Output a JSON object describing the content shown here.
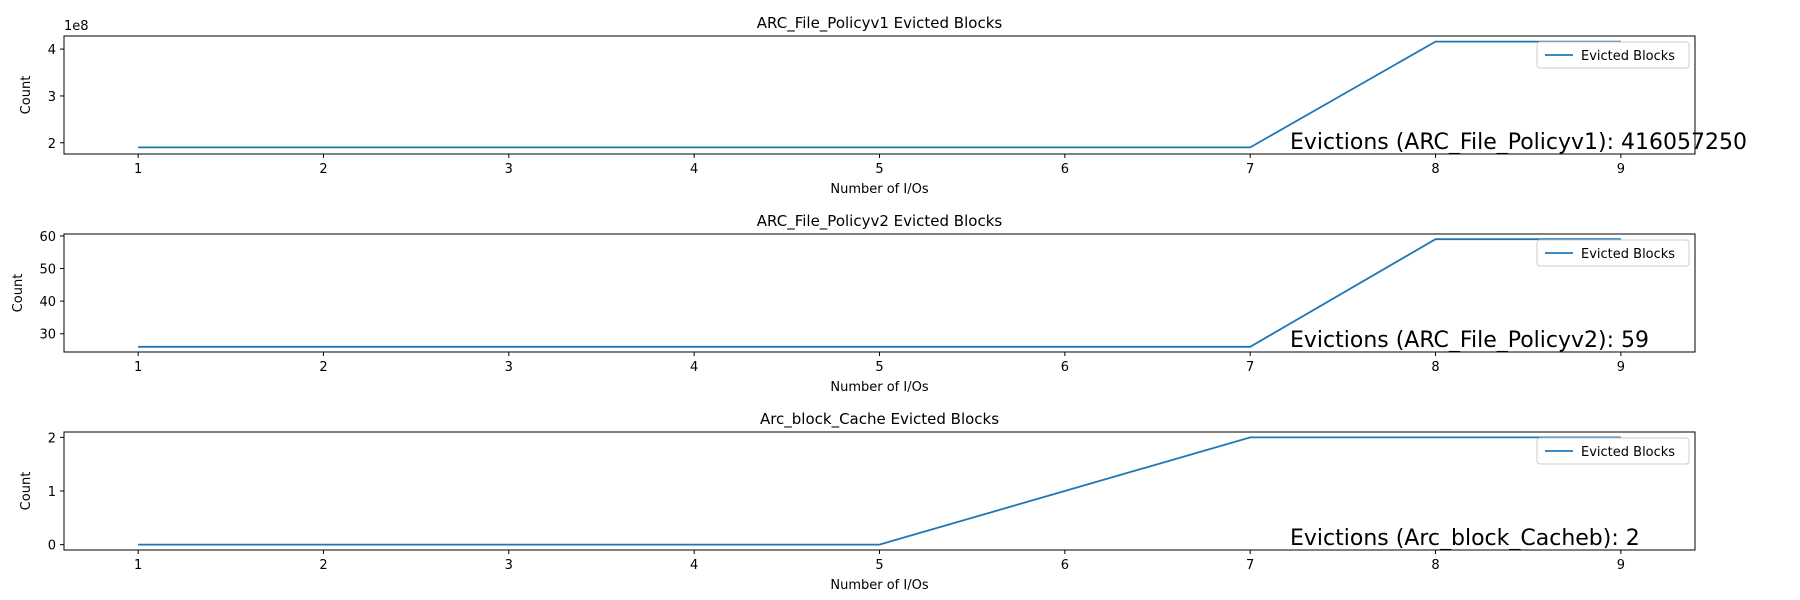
{
  "chart_data": [
    {
      "type": "line",
      "title": "ARC_File_Policyv1 Evicted Blocks",
      "xlabel": "Number of I/Os",
      "ylabel": "Count",
      "offset_label": "1e8",
      "x": [
        1,
        2,
        3,
        4,
        5,
        6,
        7,
        8,
        9
      ],
      "xticks": [
        "1",
        "2",
        "3",
        "4",
        "5",
        "6",
        "7",
        "8",
        "9"
      ],
      "xlim": [
        0.6,
        9.4
      ],
      "ylim": [
        1.76,
        4.28
      ],
      "yticks": [
        {
          "value": 2,
          "label": "2"
        },
        {
          "value": 3,
          "label": "3"
        },
        {
          "value": 4,
          "label": "4"
        }
      ],
      "series": [
        {
          "name": "Evicted Blocks",
          "values": [
            1.9,
            1.9,
            1.9,
            1.9,
            1.9,
            1.9,
            1.9,
            4.16,
            4.16
          ]
        }
      ],
      "annotation": "Evictions (ARC_File_Policyv1): 416057250",
      "legend": "upper right",
      "grid": false
    },
    {
      "type": "line",
      "title": "ARC_File_Policyv2 Evicted Blocks",
      "xlabel": "Number of I/Os",
      "ylabel": "Count",
      "offset_label": "",
      "x": [
        1,
        2,
        3,
        4,
        5,
        6,
        7,
        8,
        9
      ],
      "xticks": [
        "1",
        "2",
        "3",
        "4",
        "5",
        "6",
        "7",
        "8",
        "9"
      ],
      "xlim": [
        0.6,
        9.4
      ],
      "ylim": [
        24.4,
        60.6
      ],
      "yticks": [
        {
          "value": 30,
          "label": "30"
        },
        {
          "value": 40,
          "label": "40"
        },
        {
          "value": 50,
          "label": "50"
        },
        {
          "value": 60,
          "label": "60"
        }
      ],
      "series": [
        {
          "name": "Evicted Blocks",
          "values": [
            26,
            26,
            26,
            26,
            26,
            26,
            26,
            59,
            59
          ]
        }
      ],
      "annotation": "Evictions (ARC_File_Policyv2): 59",
      "legend": "upper right",
      "grid": false
    },
    {
      "type": "line",
      "title": "Arc_block_Cache Evicted Blocks",
      "xlabel": "Number of I/Os",
      "ylabel": "Count",
      "offset_label": "",
      "x": [
        1,
        2,
        3,
        4,
        5,
        6,
        7,
        8,
        9
      ],
      "xticks": [
        "1",
        "2",
        "3",
        "4",
        "5",
        "6",
        "7",
        "8",
        "9"
      ],
      "xlim": [
        0.6,
        9.4
      ],
      "ylim": [
        -0.1,
        2.1
      ],
      "yticks": [
        {
          "value": 0,
          "label": "0"
        },
        {
          "value": 1,
          "label": "1"
        },
        {
          "value": 2,
          "label": "2"
        }
      ],
      "series": [
        {
          "name": "Evicted Blocks",
          "values": [
            0,
            0,
            0,
            0,
            0,
            1,
            2,
            2,
            2
          ]
        }
      ],
      "annotation": "Evictions (Arc_block_Cacheb): 2",
      "legend": "upper right",
      "grid": false
    }
  ],
  "colors": {
    "series": "#1f77b4",
    "axes": "#000000",
    "legend_border": "#cccccc"
  }
}
